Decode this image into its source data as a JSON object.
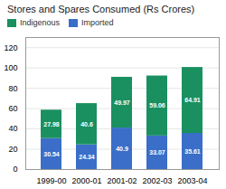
{
  "chart_data": {
    "type": "bar",
    "title": "Stores and Spares Consumed (Rs Crores)",
    "categories": [
      "1999-00",
      "2000-01",
      "2001-02",
      "2002-03",
      "2003-04"
    ],
    "series": [
      {
        "name": "Imported",
        "color": "#3a6ec8",
        "values": [
          30.54,
          24.34,
          40.9,
          33.07,
          35.61
        ]
      },
      {
        "name": "Indigenous",
        "color": "#1a9060",
        "values": [
          27.98,
          40.6,
          49.97,
          59.06,
          64.91
        ]
      }
    ],
    "stacked": true,
    "data_labels": true,
    "grid": true,
    "legend": "upper left",
    "ylim": [
      0,
      130
    ],
    "yticks": [
      0,
      20,
      40,
      60,
      80,
      100,
      120
    ]
  }
}
